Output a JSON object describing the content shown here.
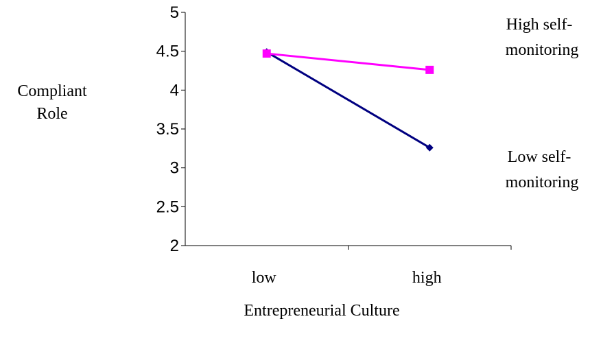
{
  "chart_data": {
    "type": "line",
    "categories": [
      "low",
      "high"
    ],
    "ylim": [
      2,
      5
    ],
    "yticks": [
      2,
      2.5,
      3,
      3.5,
      4,
      4.5,
      5
    ],
    "ytick_labels": [
      "2",
      "2.5",
      "3",
      "3.5",
      "4",
      "4.5",
      "5"
    ],
    "ylabel": [
      "Compliant",
      "Role"
    ],
    "xlabel": "Entrepreneurial Culture",
    "legend_placement": "right",
    "grid": false,
    "series": [
      {
        "name_lines": [
          "High self-",
          "monitoring"
        ],
        "values": [
          4.47,
          4.26
        ],
        "color": "#ff00ff",
        "marker": "square"
      },
      {
        "name_lines": [
          "Low self-",
          "monitoring"
        ],
        "values": [
          4.49,
          3.26
        ],
        "color": "#000080",
        "marker": "diamond"
      }
    ]
  }
}
